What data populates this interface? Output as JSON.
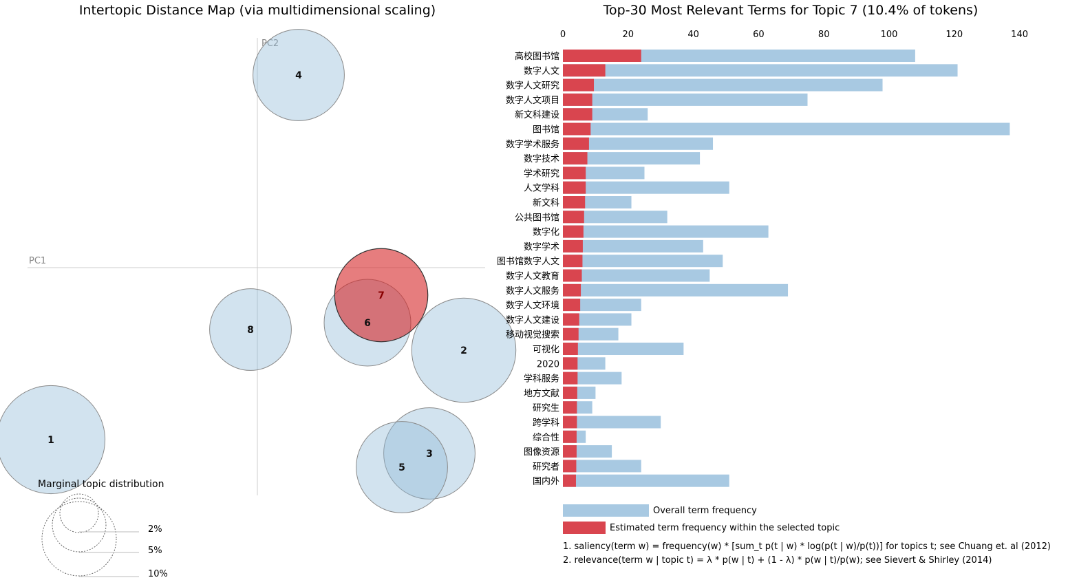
{
  "left_panel": {
    "title": "Intertopic Distance Map (via multidimensional scaling)",
    "pc1_label": "PC1",
    "pc2_label": "PC2",
    "selected_topic": "7",
    "marginal": {
      "title": "Marginal topic distribution",
      "labels": [
        "2%",
        "5%",
        "10%"
      ]
    }
  },
  "chart_data": [
    {
      "type": "scatter",
      "title": "Intertopic Distance Map (via multidimensional scaling)",
      "xlabel": "PC1",
      "ylabel": "PC2",
      "points": [
        {
          "label": "1",
          "x": -0.3,
          "y": -0.25,
          "size_pct": 14
        },
        {
          "label": "2",
          "x": 0.3,
          "y": -0.12,
          "size_pct": 13
        },
        {
          "label": "3",
          "x": 0.25,
          "y": -0.27,
          "size_pct": 10
        },
        {
          "label": "4",
          "x": 0.06,
          "y": 0.28,
          "size_pct": 10
        },
        {
          "label": "5",
          "x": 0.21,
          "y": -0.29,
          "size_pct": 10
        },
        {
          "label": "6",
          "x": 0.16,
          "y": -0.08,
          "size_pct": 9
        },
        {
          "label": "7",
          "x": 0.18,
          "y": -0.04,
          "size_pct": 10.4
        },
        {
          "label": "8",
          "x": -0.01,
          "y": -0.09,
          "size_pct": 8
        }
      ]
    },
    {
      "type": "bar",
      "orientation": "horizontal",
      "title": "Top-30 Most Relevant Terms for Topic 7 (10.4% of tokens)",
      "xlim": [
        0,
        140
      ],
      "xticks": [
        "0",
        "20",
        "40",
        "60",
        "80",
        "100",
        "120",
        "140"
      ],
      "categories": [
        "高校图书馆",
        "数字人文",
        "数字人文研究",
        "数字人文项目",
        "新文科建设",
        "图书馆",
        "数字学术服务",
        "数字技术",
        "学术研究",
        "人文学科",
        "新文科",
        "公共图书馆",
        "数字化",
        "数字学术",
        "图书馆数字人文",
        "数字人文教育",
        "数字人文服务",
        "数字人文环境",
        "数字人文建设",
        "移动视觉搜索",
        "可视化",
        "2020",
        "学科服务",
        "地方文献",
        "研究生",
        "跨学科",
        "综合性",
        "图像资源",
        "研究者",
        "国内外"
      ],
      "series": [
        {
          "name": "Overall term frequency",
          "color": "#a8c9e2",
          "values": [
            108,
            121,
            98,
            75,
            26,
            137,
            46,
            42,
            25,
            51,
            21,
            32,
            63,
            43,
            49,
            45,
            69,
            24,
            21,
            17,
            37,
            13,
            18,
            10,
            9,
            30,
            7,
            15,
            24,
            51
          ]
        },
        {
          "name": "Estimated term frequency within the selected topic",
          "color": "#d9454f",
          "values": [
            24,
            13,
            9.5,
            9,
            9,
            8.5,
            8,
            7.5,
            7,
            7,
            6.8,
            6.5,
            6.3,
            6.1,
            6,
            5.8,
            5.5,
            5.3,
            5,
            4.8,
            4.6,
            4.5,
            4.5,
            4.4,
            4.3,
            4.3,
            4.2,
            4.2,
            4.1,
            4
          ]
        }
      ]
    }
  ],
  "right_panel": {
    "title": "Top-30 Most Relevant Terms for Topic 7 (10.4% of tokens)",
    "legend": {
      "overall": "Overall term frequency",
      "topic": "Estimated term frequency within the selected topic"
    },
    "footnotes": [
      "1. saliency(term w) = frequency(w) * [sum_t p(t | w) * log(p(t | w)/p(t))] for topics t; see Chuang et. al (2012)",
      "2. relevance(term w | topic t) = λ * p(w | t) + (1 - λ) * p(w | t)/p(w); see Sievert & Shirley (2014)"
    ]
  },
  "colors": {
    "overall": "#a8c9e2",
    "topic": "#d9454f",
    "circle": "#8fb8d8",
    "selected_circle": "#d62728"
  }
}
